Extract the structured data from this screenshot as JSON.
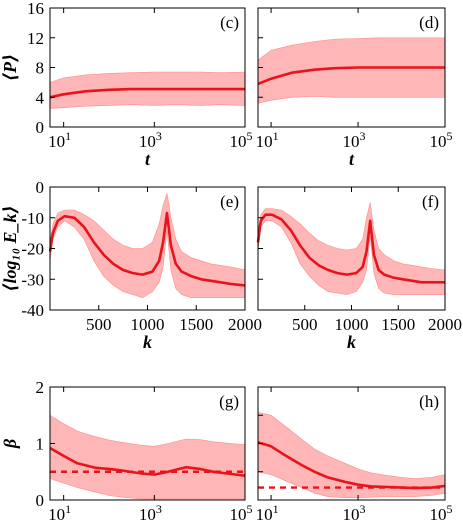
{
  "figure": {
    "colors": {
      "band": "#ffb6b6",
      "band_edge": "#ff8c8c",
      "line": "#e8141c",
      "axis": "#000000",
      "background": "#ffffff"
    }
  },
  "chart_data": [
    {
      "type": "line",
      "panel_label": "(c)",
      "xscale": "log",
      "xlim": [
        5,
        100000
      ],
      "xticks": [
        10,
        1000,
        100000
      ],
      "xtick_base": "10",
      "xtick_exps": [
        "1",
        "3",
        "5"
      ],
      "xlabel": "t",
      "ylim": [
        0,
        16
      ],
      "yticks": [
        "0",
        "4",
        "8",
        "12",
        "16"
      ],
      "ylabel": "⟨P⟩",
      "series": [
        {
          "kind": "mean",
          "x": [
            5,
            10,
            30,
            100,
            300,
            1000,
            3000,
            10000,
            30000,
            100000
          ],
          "y": [
            4.0,
            4.4,
            4.8,
            5.0,
            5.1,
            5.1,
            5.1,
            5.1,
            5.1,
            5.1
          ]
        },
        {
          "kind": "band",
          "x": [
            5,
            10,
            30,
            100,
            300,
            1000,
            3000,
            10000,
            30000,
            100000
          ],
          "low": [
            2.5,
            2.6,
            2.8,
            2.9,
            3.0,
            2.9,
            3.0,
            2.9,
            3.0,
            2.9
          ],
          "high": [
            6.0,
            6.6,
            7.0,
            7.2,
            7.3,
            7.4,
            7.4,
            7.4,
            7.3,
            7.4
          ]
        }
      ]
    },
    {
      "type": "line",
      "panel_label": "(d)",
      "xscale": "log",
      "xlim": [
        5,
        100000
      ],
      "xticks": [
        10,
        1000,
        100000
      ],
      "xtick_base": "10",
      "xtick_exps": [
        "1",
        "3",
        "5"
      ],
      "xlabel": "t",
      "ylim": [
        0,
        16
      ],
      "series": [
        {
          "kind": "mean",
          "x": [
            5,
            10,
            30,
            100,
            300,
            1000,
            3000,
            10000,
            30000,
            100000
          ],
          "y": [
            5.8,
            6.5,
            7.3,
            7.7,
            7.9,
            8.0,
            8.0,
            8.0,
            8.0,
            8.0
          ]
        },
        {
          "kind": "band",
          "x": [
            5,
            10,
            30,
            100,
            300,
            1000,
            3000,
            10000,
            30000,
            100000
          ],
          "low": [
            3.2,
            3.6,
            4.0,
            4.1,
            4.0,
            4.0,
            4.0,
            4.0,
            4.0,
            4.0
          ],
          "high": [
            9.0,
            10.3,
            11.0,
            11.5,
            11.8,
            11.9,
            12.0,
            12.0,
            12.0,
            12.0
          ]
        }
      ]
    },
    {
      "type": "line",
      "panel_label": "(e)",
      "xscale": "linear",
      "xlim": [
        0,
        2000
      ],
      "xticks": [
        500,
        1000,
        1500,
        2000
      ],
      "xticklabels": [
        "500",
        "1000",
        "1500",
        "2000"
      ],
      "xlabel": "k",
      "ylim": [
        -40,
        0
      ],
      "yticks": [
        "0",
        "-10",
        "-20",
        "-30",
        "-40"
      ],
      "ylabel": "⟨log₁₀ E_k⟩",
      "series": [
        {
          "kind": "mean",
          "x": [
            0,
            30,
            80,
            150,
            250,
            350,
            450,
            550,
            650,
            750,
            850,
            950,
            1050,
            1120,
            1160,
            1200,
            1240,
            1290,
            1350,
            1450,
            1550,
            1650,
            1750,
            1850,
            2000
          ],
          "y": [
            -21,
            -15,
            -11,
            -9.5,
            -10,
            -13,
            -18,
            -22,
            -25,
            -27,
            -28,
            -28.5,
            -27.5,
            -24,
            -18,
            -8.5,
            -19,
            -25,
            -27.5,
            -29,
            -30,
            -30.5,
            -31,
            -31.5,
            -32
          ]
        },
        {
          "kind": "band",
          "x": [
            0,
            30,
            80,
            150,
            250,
            350,
            450,
            550,
            650,
            750,
            850,
            950,
            1050,
            1120,
            1160,
            1200,
            1240,
            1290,
            1350,
            1450,
            1550,
            1650,
            1750,
            1850,
            2000
          ],
          "low": [
            -24,
            -17,
            -13,
            -11,
            -13,
            -17,
            -24,
            -29,
            -32,
            -34,
            -35,
            -36,
            -34,
            -31,
            -26,
            -14,
            -27,
            -33,
            -35,
            -36,
            -36,
            -36,
            -36,
            -36,
            -36
          ],
          "high": [
            -18,
            -12,
            -8.5,
            -7.5,
            -7.5,
            -9,
            -11,
            -14,
            -17,
            -19,
            -20,
            -20,
            -18,
            -12,
            -6,
            -2,
            -10,
            -17,
            -21,
            -23,
            -24,
            -25,
            -25.5,
            -26,
            -27
          ]
        }
      ]
    },
    {
      "type": "line",
      "panel_label": "(f)",
      "xscale": "linear",
      "xlim": [
        0,
        2000
      ],
      "xticks": [
        500,
        1000,
        1500,
        2000
      ],
      "xticklabels": [
        "500",
        "1000",
        "1500",
        "2000"
      ],
      "xlabel": "k",
      "ylim": [
        -40,
        0
      ],
      "series": [
        {
          "kind": "mean",
          "x": [
            0,
            30,
            80,
            150,
            250,
            350,
            450,
            550,
            650,
            750,
            850,
            950,
            1050,
            1120,
            1160,
            1200,
            1240,
            1290,
            1350,
            1450,
            1550,
            1650,
            1750,
            1850,
            2000
          ],
          "y": [
            -18,
            -11,
            -9,
            -9,
            -10.5,
            -14,
            -19,
            -23,
            -25.5,
            -27,
            -28,
            -28.5,
            -28,
            -26,
            -21,
            -11,
            -22,
            -27,
            -28.5,
            -29.5,
            -30,
            -30.5,
            -31,
            -31,
            -31
          ]
        },
        {
          "kind": "band",
          "x": [
            0,
            30,
            80,
            150,
            250,
            350,
            450,
            550,
            650,
            750,
            850,
            950,
            1050,
            1120,
            1160,
            1200,
            1240,
            1290,
            1350,
            1450,
            1550,
            1650,
            1750,
            1850,
            2000
          ],
          "low": [
            -21,
            -13,
            -11,
            -11,
            -13,
            -18,
            -25,
            -29,
            -32,
            -34,
            -34.5,
            -35,
            -34,
            -31,
            -27,
            -16,
            -28,
            -33,
            -34.5,
            -35,
            -35,
            -35,
            -35,
            -35,
            -35
          ],
          "high": [
            -15,
            -9,
            -7,
            -7,
            -7.5,
            -9.5,
            -12,
            -15,
            -17.5,
            -19,
            -20,
            -20.5,
            -20,
            -17,
            -10,
            -5,
            -14,
            -20,
            -22,
            -24,
            -25,
            -25.5,
            -26,
            -26.5,
            -27
          ]
        }
      ]
    },
    {
      "type": "line",
      "panel_label": "(g)",
      "xscale": "log",
      "xlim": [
        5,
        100000
      ],
      "xticks": [
        10,
        1000,
        100000
      ],
      "xtick_base": "10",
      "xtick_exps": [
        "1",
        "3",
        "5"
      ],
      "xlabel": "t",
      "ylim": [
        0,
        2
      ],
      "yticks": [
        "0",
        "1",
        "2"
      ],
      "ylabel": "β",
      "series": [
        {
          "kind": "mean",
          "x": [
            5,
            10,
            20,
            50,
            100,
            200,
            500,
            1000,
            2000,
            5000,
            10000,
            20000,
            50000,
            100000
          ],
          "y": [
            0.92,
            0.78,
            0.65,
            0.57,
            0.55,
            0.52,
            0.47,
            0.45,
            0.5,
            0.58,
            0.55,
            0.5,
            0.46,
            0.43
          ]
        },
        {
          "kind": "band",
          "x": [
            5,
            10,
            20,
            50,
            100,
            200,
            500,
            1000,
            2000,
            5000,
            10000,
            20000,
            50000,
            100000
          ],
          "low": [
            0.38,
            0.3,
            0.22,
            0.14,
            0.08,
            0.05,
            0.02,
            0.02,
            0.02,
            0.02,
            0.02,
            0.02,
            0.02,
            0.02
          ],
          "high": [
            1.5,
            1.35,
            1.22,
            1.12,
            1.06,
            1.02,
            0.97,
            0.95,
            1.0,
            1.08,
            1.07,
            1.03,
            1.0,
            0.98
          ]
        },
        {
          "kind": "reference",
          "style": "dashed",
          "y": [
            0.5,
            0.5
          ]
        }
      ]
    },
    {
      "type": "line",
      "panel_label": "(h)",
      "xscale": "log",
      "xlim": [
        5,
        100000
      ],
      "xticks": [
        10,
        1000,
        100000
      ],
      "xtick_base": "10",
      "xtick_exps": [
        "1",
        "3",
        "5"
      ],
      "xlabel": "t",
      "ylim": [
        0,
        2
      ],
      "series": [
        {
          "kind": "mean",
          "x": [
            5,
            10,
            20,
            50,
            100,
            200,
            500,
            1000,
            2000,
            5000,
            10000,
            20000,
            50000,
            100000
          ],
          "y": [
            1.02,
            0.95,
            0.8,
            0.62,
            0.5,
            0.4,
            0.32,
            0.27,
            0.24,
            0.23,
            0.22,
            0.21,
            0.22,
            0.25
          ]
        },
        {
          "kind": "band",
          "x": [
            5,
            10,
            20,
            50,
            100,
            200,
            500,
            1000,
            2000,
            5000,
            10000,
            20000,
            50000,
            100000
          ],
          "low": [
            0.5,
            0.45,
            0.35,
            0.22,
            0.12,
            0.06,
            0.04,
            0.04,
            0.05,
            0.06,
            0.06,
            0.06,
            0.08,
            0.12
          ],
          "high": [
            1.55,
            1.5,
            1.32,
            1.08,
            0.9,
            0.78,
            0.65,
            0.55,
            0.48,
            0.43,
            0.4,
            0.38,
            0.4,
            0.45
          ]
        },
        {
          "kind": "reference",
          "style": "dashed",
          "y": [
            0.22,
            0.22
          ]
        }
      ]
    }
  ]
}
